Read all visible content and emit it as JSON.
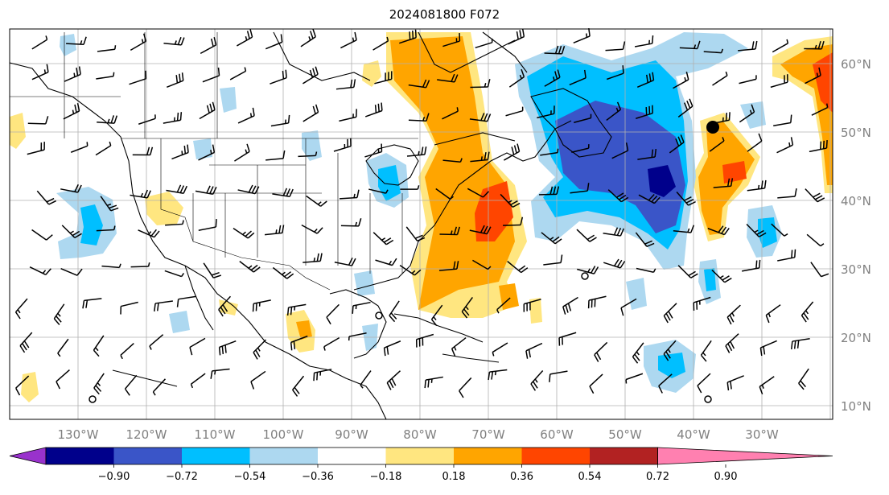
{
  "title": "2024081800 F072",
  "map": {
    "lon_labels": [
      "130°W",
      "120°W",
      "110°W",
      "100°W",
      "90°W",
      "80°W",
      "70°W",
      "60°W",
      "50°W",
      "40°W",
      "30°W"
    ],
    "lat_labels": [
      "60°N",
      "50°N",
      "40°N",
      "30°N",
      "20°N",
      "10°N"
    ],
    "land_color": "#ffffff",
    "grid": true
  },
  "colorbar": {
    "ticks": [
      "−0.90",
      "−0.72",
      "−0.54",
      "−0.36",
      "−0.18",
      "0.18",
      "0.36",
      "0.54",
      "0.72",
      "0.90"
    ],
    "colors": [
      "#9932cc",
      "#00008b",
      "#3a55c8",
      "#00bfff",
      "#add8f0",
      "#ffffff",
      "#ffe680",
      "#ffa500",
      "#ff4500",
      "#b22222",
      "#ff80b0"
    ]
  }
}
